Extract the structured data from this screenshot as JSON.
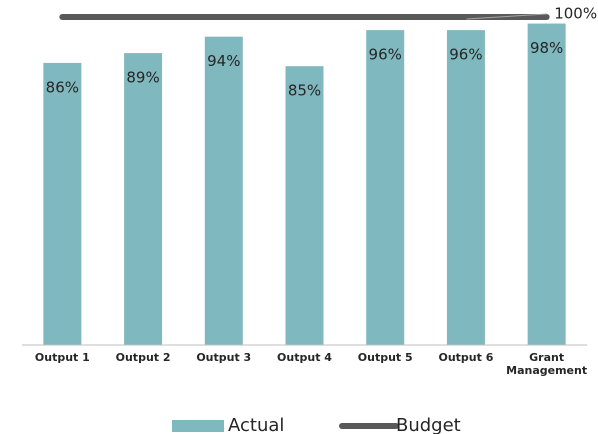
{
  "chart_data": {
    "type": "bar",
    "categories": [
      "Output 1",
      "Output 2",
      "Output 3",
      "Output 4",
      "Output 5",
      "Output 6",
      "Grant Management"
    ],
    "ylim": [
      0,
      100
    ],
    "series": [
      {
        "name": "Actual",
        "type": "bar",
        "color": "#7fb8be",
        "values": [
          86,
          89,
          94,
          85,
          96,
          96,
          98
        ],
        "value_labels": [
          "86%",
          "89%",
          "94%",
          "85%",
          "96%",
          "96%",
          "98%"
        ]
      },
      {
        "name": "Budget",
        "type": "line",
        "color": "#595959",
        "values": [
          100,
          100,
          100,
          100,
          100,
          100,
          100
        ],
        "value_labels": [
          null,
          null,
          null,
          null,
          null,
          null,
          "100%"
        ]
      }
    ]
  }
}
